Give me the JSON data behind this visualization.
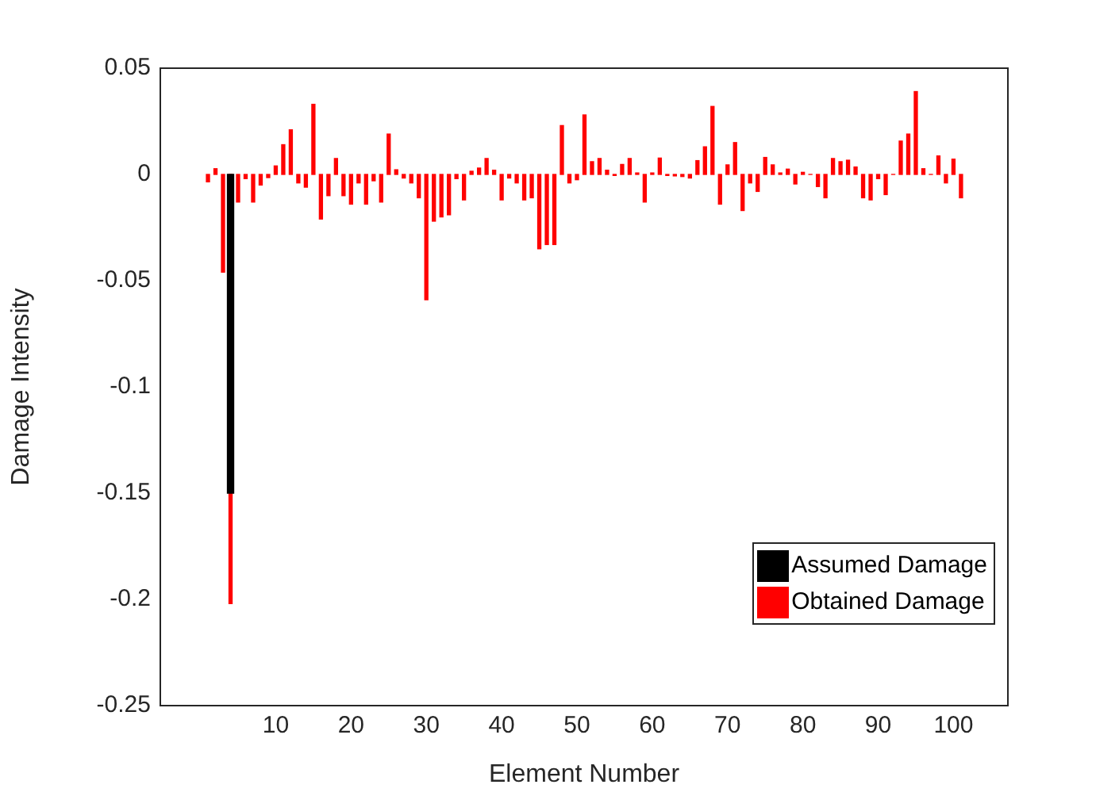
{
  "chart_data": {
    "type": "bar",
    "xlabel": "Element Number",
    "ylabel": "Damage Intensity",
    "xlim": [
      0.3,
      101.6
    ],
    "xticks": [
      10,
      20,
      30,
      40,
      50,
      60,
      70,
      80,
      90,
      100
    ],
    "ylim": [
      -0.25,
      0.05
    ],
    "yticks": [
      0.05,
      0,
      -0.05,
      -0.1,
      -0.15,
      -0.2,
      -0.25
    ],
    "grid": false,
    "legend": "bottom right",
    "series": [
      {
        "name": "Assumed Damage",
        "color": "#000000",
        "x": [
          4
        ],
        "values": [
          -0.15
        ]
      },
      {
        "name": "Obtained Damage",
        "color": "#ff0000",
        "x": [
          1,
          2,
          3,
          4,
          5,
          6,
          7,
          8,
          9,
          10,
          11,
          12,
          13,
          14,
          15,
          16,
          17,
          18,
          19,
          20,
          21,
          22,
          23,
          24,
          25,
          26,
          27,
          28,
          29,
          30,
          31,
          32,
          33,
          34,
          35,
          36,
          37,
          38,
          39,
          40,
          41,
          42,
          43,
          44,
          45,
          46,
          47,
          48,
          49,
          50,
          51,
          52,
          53,
          54,
          55,
          56,
          57,
          58,
          59,
          60,
          61,
          62,
          63,
          64,
          65,
          66,
          67,
          68,
          69,
          70,
          71,
          72,
          73,
          74,
          75,
          76,
          77,
          78,
          79,
          80,
          81,
          82,
          83,
          84,
          85,
          86,
          87,
          88,
          89,
          90,
          91,
          92,
          93,
          94,
          95,
          96,
          97,
          98,
          99,
          100,
          101
        ],
        "values": [
          -0.0035,
          0.0027,
          -0.046,
          -0.202,
          -0.013,
          -0.002,
          -0.013,
          -0.005,
          -0.0015,
          0.004,
          0.014,
          0.021,
          -0.004,
          -0.006,
          0.033,
          -0.021,
          -0.01,
          0.0075,
          -0.01,
          -0.014,
          -0.004,
          -0.014,
          -0.003,
          -0.013,
          0.019,
          0.0022,
          -0.0017,
          -0.004,
          -0.011,
          -0.059,
          -0.022,
          -0.02,
          -0.019,
          -0.002,
          -0.012,
          0.0015,
          0.003,
          0.0075,
          0.002,
          -0.012,
          -0.0017,
          -0.004,
          -0.012,
          -0.011,
          -0.035,
          -0.033,
          -0.033,
          0.023,
          -0.004,
          -0.0025,
          0.028,
          0.006,
          0.0075,
          0.002,
          -0.0005,
          0.0047,
          0.0075,
          0.0007,
          -0.013,
          0.0007,
          0.0077,
          -0.0005,
          -0.0007,
          -0.001,
          -0.0017,
          0.0065,
          0.013,
          0.032,
          -0.014,
          0.0045,
          0.015,
          -0.017,
          -0.004,
          -0.008,
          0.008,
          0.0045,
          0.0007,
          0.0025,
          -0.0045,
          0.001,
          0,
          -0.0057,
          -0.011,
          0.0075,
          0.006,
          0.0067,
          0.0035,
          -0.011,
          -0.012,
          -0.002,
          -0.0095,
          0,
          0.0157,
          0.019,
          0.039,
          0.0027,
          0,
          0.0087,
          -0.004,
          0.0072,
          -0.011
        ]
      }
    ]
  }
}
